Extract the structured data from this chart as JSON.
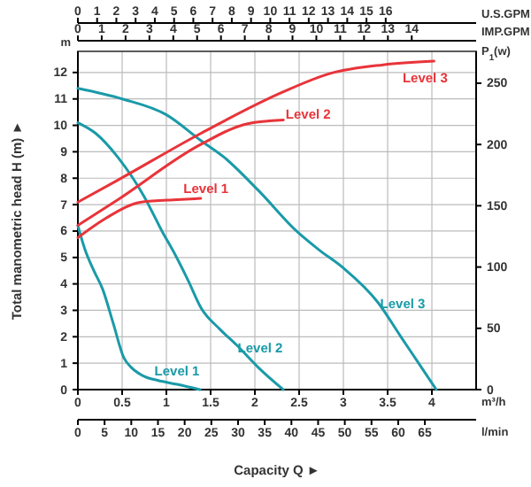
{
  "chart_data": [
    {
      "type": "line",
      "xlabel": "Capacity Q ►",
      "ylabel": "Total manometric head H (m) ►",
      "xlim": [
        0,
        4.5
      ],
      "xticks": [
        0,
        0.5,
        1,
        1.5,
        2,
        2.5,
        3,
        3.5,
        4
      ],
      "x2label": "U.S.GPM",
      "x2lim": [
        0,
        20.7
      ],
      "x2ticks": [
        0,
        1,
        2,
        3,
        4,
        5,
        6,
        7,
        8,
        9,
        10,
        11,
        12,
        13,
        14,
        15,
        16
      ],
      "ylim": [
        0,
        12.8
      ],
      "yticks": [
        0,
        1,
        2,
        3,
        4,
        5,
        6,
        7,
        8,
        9,
        10,
        11,
        12
      ],
      "grid": true,
      "legend": false,
      "marker": "none",
      "line_style": "solid",
      "series": [
        {
          "name": "Level 1",
          "color": "#1a9aa8",
          "x": [
            0,
            0.08,
            0.18,
            0.28,
            0.4,
            0.52,
            0.6,
            0.72,
            0.9,
            1.12,
            1.38
          ],
          "values": [
            6.2,
            5.3,
            4.5,
            3.8,
            2.5,
            1.2,
            0.85,
            0.55,
            0.35,
            0.2,
            0
          ]
        },
        {
          "name": "Level 2",
          "color": "#1a9aa8",
          "x": [
            0,
            0.2,
            0.45,
            0.75,
            0.95,
            1.1,
            1.25,
            1.39,
            1.6,
            1.79,
            2.05,
            2.32
          ],
          "values": [
            10.1,
            9.7,
            8.8,
            7.3,
            6.0,
            5.1,
            4.1,
            3.1,
            2.3,
            1.7,
            0.8,
            0
          ]
        },
        {
          "name": "Level 3",
          "color": "#1a9aa8",
          "x": [
            0,
            0.5,
            1,
            1.4,
            1.65,
            2.05,
            2.47,
            2.72,
            3.0,
            3.39,
            3.65,
            3.85,
            4.05
          ],
          "values": [
            11.4,
            11.0,
            10.4,
            9.4,
            8.8,
            7.5,
            6.0,
            5.3,
            4.6,
            3.3,
            2.0,
            1.0,
            0
          ]
        }
      ],
      "annotations": [
        "m",
        "m³/h"
      ]
    },
    {
      "type": "line",
      "xlabel": "l/min",
      "xlim": [
        0,
        74.6
      ],
      "xticks": [
        0,
        5,
        10,
        15,
        20,
        25,
        30,
        35,
        40,
        45,
        50,
        55,
        60,
        65
      ],
      "x2label": "IMP.GPM",
      "x2lim": [
        0,
        16.7
      ],
      "x2ticks": [
        0,
        1,
        2,
        3,
        4,
        5,
        6,
        7,
        8,
        9,
        10,
        11,
        12,
        13,
        14
      ],
      "ylabel": "P$_{1}$(w)",
      "ylim": [
        0,
        276
      ],
      "yticks": [
        0,
        50,
        100,
        150,
        200,
        250
      ],
      "legend": false,
      "marker": "none",
      "line_style": "solid",
      "series": [
        {
          "name": "Level 1",
          "color": "#e8343a",
          "x": [
            0,
            5.3,
            11.9,
            18.6,
            23.0
          ],
          "values": [
            124,
            140,
            153,
            155,
            156
          ]
        },
        {
          "name": "Level 2",
          "color": "#e8343a",
          "x": [
            0,
            7.5,
            23.0,
            31.8,
            38.5
          ],
          "values": [
            134,
            155,
            200,
            217,
            220
          ]
        },
        {
          "name": "Level 3",
          "color": "#e8343a",
          "x": [
            0,
            7.5,
            23.0,
            38.5,
            47.3,
            57.2,
            66.7
          ],
          "values": [
            153,
            171,
            209,
            243,
            258,
            265,
            268
          ]
        }
      ]
    }
  ]
}
